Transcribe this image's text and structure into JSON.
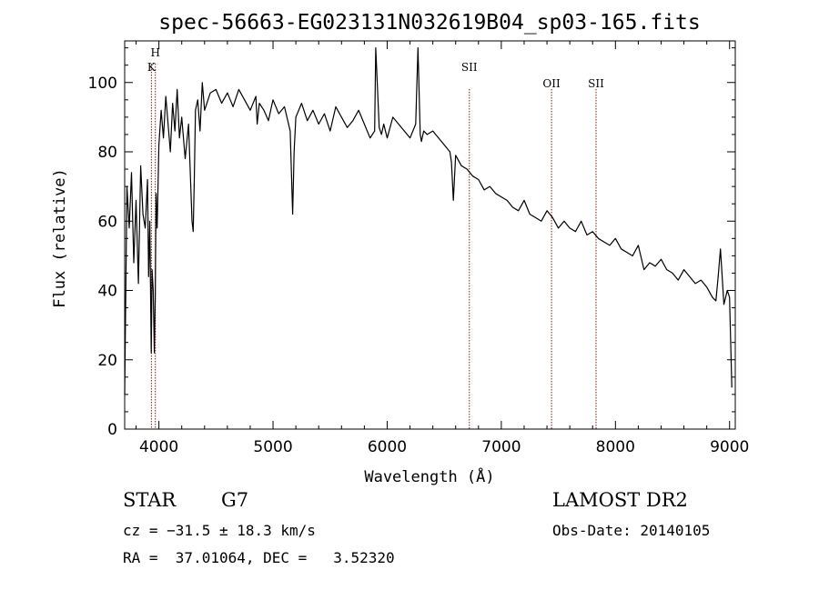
{
  "chart_data": {
    "type": "line",
    "title": "spec-56663-EG023131N032619B04_sp03-165.fits",
    "xlabel": "Wavelength (Å)",
    "ylabel": "Flux (relative)",
    "xlim": [
      3700,
      9050
    ],
    "ylim": [
      0,
      112
    ],
    "xticks": [
      4000,
      5000,
      6000,
      7000,
      8000,
      9000
    ],
    "yticks": [
      0,
      20,
      40,
      60,
      80,
      100
    ],
    "grid": false,
    "series": [
      {
        "x": [
          3700,
          3720,
          3740,
          3760,
          3780,
          3800,
          3820,
          3840,
          3860,
          3880,
          3900,
          3910,
          3920,
          3933,
          3940,
          3950,
          3960,
          3968,
          3975,
          3985,
          4000,
          4020,
          4040,
          4060,
          4080,
          4100,
          4120,
          4140,
          4160,
          4180,
          4200,
          4230,
          4260,
          4290,
          4300,
          4310,
          4320,
          4340,
          4360,
          4380,
          4400,
          4450,
          4500,
          4550,
          4600,
          4650,
          4700,
          4750,
          4800,
          4850,
          4861,
          4880,
          4920,
          4960,
          5000,
          5050,
          5100,
          5150,
          5172,
          5185,
          5200,
          5250,
          5300,
          5350,
          5400,
          5450,
          5500,
          5550,
          5600,
          5650,
          5700,
          5750,
          5800,
          5850,
          5890,
          5900,
          5930,
          5950,
          5970,
          6000,
          6050,
          6100,
          6150,
          6200,
          6250,
          6270,
          6290,
          6300,
          6320,
          6350,
          6400,
          6450,
          6500,
          6550,
          6563,
          6580,
          6600,
          6650,
          6700,
          6750,
          6800,
          6850,
          6900,
          6950,
          7000,
          7050,
          7100,
          7150,
          7200,
          7250,
          7300,
          7350,
          7400,
          7450,
          7500,
          7550,
          7600,
          7650,
          7700,
          7750,
          7800,
          7850,
          7900,
          7950,
          8000,
          8050,
          8100,
          8150,
          8200,
          8250,
          8300,
          8350,
          8400,
          8450,
          8500,
          8550,
          8600,
          8650,
          8700,
          8750,
          8800,
          8850,
          8880,
          8900,
          8920,
          8950,
          8980,
          9000,
          9020
        ],
        "y": [
          10,
          70,
          58,
          74,
          48,
          66,
          42,
          76,
          62,
          58,
          72,
          44,
          60,
          22,
          46,
          40,
          22,
          38,
          68,
          58,
          82,
          92,
          84,
          96,
          88,
          80,
          94,
          86,
          98,
          84,
          90,
          78,
          88,
          60,
          57,
          72,
          92,
          95,
          86,
          100,
          92,
          97,
          98,
          94,
          97,
          93,
          98,
          95,
          92,
          96,
          88,
          94,
          92,
          89,
          95,
          91,
          93,
          86,
          62,
          80,
          90,
          94,
          89,
          92,
          88,
          91,
          86,
          93,
          90,
          87,
          89,
          92,
          88,
          84,
          86,
          110,
          87,
          85,
          88,
          84,
          90,
          88,
          86,
          84,
          88,
          110,
          85,
          83,
          86,
          85,
          86,
          84,
          82,
          80,
          77,
          66,
          79,
          76,
          75,
          73,
          72,
          69,
          70,
          68,
          67,
          66,
          64,
          63,
          66,
          62,
          61,
          60,
          63,
          61,
          58,
          60,
          58,
          57,
          60,
          56,
          57,
          55,
          54,
          53,
          55,
          52,
          51,
          50,
          53,
          46,
          48,
          47,
          49,
          46,
          45,
          43,
          46,
          44,
          42,
          43,
          41,
          38,
          37,
          44,
          52,
          36,
          40,
          38,
          12
        ]
      }
    ],
    "annotations": [
      {
        "label": "H",
        "x": 3969
      },
      {
        "label": "K",
        "x": 3934
      },
      {
        "label": "SII",
        "x": 6720
      },
      {
        "label": "OII",
        "x": 7440
      },
      {
        "label": "SII",
        "x": 7830
      }
    ]
  },
  "info": {
    "object_class": "STAR",
    "subclass": "G7",
    "survey": "LAMOST DR2",
    "cz": "cz = −31.5 ± 18.3 km/s",
    "obs_date": "Obs-Date: 20140105",
    "coords": "RA =  37.01064, DEC =   3.52320"
  },
  "colors": {
    "spectrum": "#000000",
    "line_marker": "#8b1a1a"
  }
}
